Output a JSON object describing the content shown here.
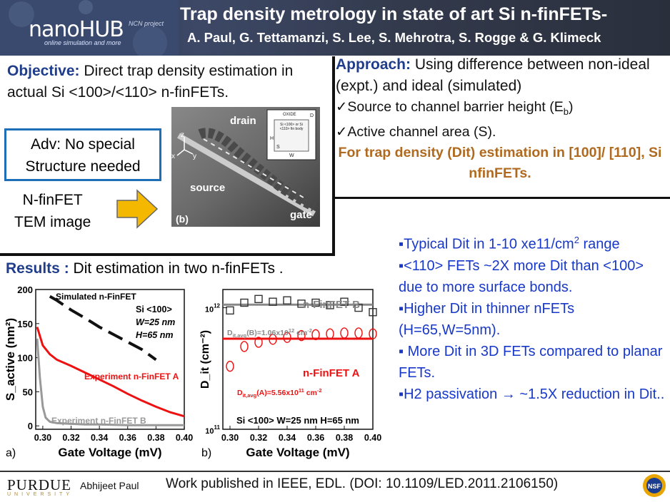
{
  "header": {
    "logo": "nanoHUB",
    "logo_sub": "online simulation and more",
    "ncn": "NCN project",
    "title": "Trap density metrology in state of art Si n-finFETs-",
    "authors": "A. Paul, G. Tettamanzi, S. Lee, S. Mehrotra, S. Rogge & G. Klimeck"
  },
  "objective": {
    "label": "Objective:",
    "text": "Direct trap density estimation in actual Si <100>/<110> n-finFETs.",
    "adv_line1": "Adv: No special",
    "adv_line2": "Structure needed",
    "nfin_line1": "N-finFET",
    "nfin_line2": "TEM image"
  },
  "tem_image": {
    "drain": "drain",
    "source": "source",
    "gate": "gate",
    "panel": "(b)",
    "inset_oxide": "OXIDE",
    "inset_body": "Si <100> or Si <110> fin body",
    "inset_h": "H",
    "inset_s": "S",
    "inset_w": "W",
    "inset_d": "D",
    "axis_z": "z",
    "axis_x": "x",
    "axis_y": "y"
  },
  "approach": {
    "label": "Approach:",
    "text": "Using difference between non-ideal (expt.) and ideal (simulated)",
    "check1_pre": "✓Source to channel barrier height  (E",
    "check1_sub": "b",
    "check1_post": ")",
    "check2": "✓Active channel area (S).",
    "note": "For trap density (Dit) estimation in [100]/ [110], Si nfinFETs."
  },
  "results": {
    "label": "Results :",
    "text": "Dit estimation in two n-finFETs ."
  },
  "chart_data": [
    {
      "type": "line",
      "panel": "a)",
      "xlabel": "Gate Voltage (mV)",
      "ylabel": "S_active (nm²)",
      "xlim": [
        0.295,
        0.4
      ],
      "ylim": [
        -5,
        200
      ],
      "x_ticks": [
        "0.30",
        "0.32",
        "0.34",
        "0.36",
        "0.38",
        "0.40"
      ],
      "y_ticks": [
        "0",
        "50",
        "100",
        "150",
        "200"
      ],
      "annotations": [
        "Si <100>",
        "W=25 nm",
        "H=65 nm"
      ],
      "series": [
        {
          "name": "Simulated n-FinFET",
          "color": "#111111",
          "style": "dashed",
          "x": [
            0.305,
            0.31,
            0.32,
            0.33,
            0.34,
            0.35,
            0.36,
            0.37,
            0.38
          ],
          "y": [
            190,
            184,
            170,
            158,
            145,
            134,
            123,
            112,
            97
          ]
        },
        {
          "name": "Experiment n-FinFET A",
          "color": "#ee1111",
          "style": "solid",
          "x": [
            0.296,
            0.3,
            0.305,
            0.31,
            0.32,
            0.33,
            0.34,
            0.35,
            0.36,
            0.37,
            0.38,
            0.39,
            0.4
          ],
          "y": [
            145,
            118,
            105,
            97,
            88,
            78,
            68,
            58,
            47,
            37,
            28,
            20,
            14
          ]
        },
        {
          "name": "Experiment n-FinFET B",
          "color": "#999999",
          "style": "solid",
          "x": [
            0.296,
            0.298,
            0.3,
            0.302,
            0.305,
            0.31,
            0.32,
            0.33,
            0.34,
            0.36,
            0.38,
            0.4
          ],
          "y": [
            128,
            70,
            28,
            12,
            6,
            4,
            3,
            2,
            2,
            1,
            1,
            1
          ]
        }
      ]
    },
    {
      "type": "scatter",
      "panel": "b)",
      "xlabel": "Gate Voltage (mV)",
      "ylabel": "D_it (cm⁻²)",
      "xlim": [
        0.295,
        0.4
      ],
      "scale": "log",
      "ylim_exp": [
        11,
        12.15
      ],
      "x_ticks": [
        "0.30",
        "0.32",
        "0.34",
        "0.36",
        "0.38",
        "0.40"
      ],
      "y_tick_base": "10",
      "y_ticks_exp": [
        "11",
        "12"
      ],
      "annotation": "Si <100> W=25 nm H=65 nm",
      "series": [
        {
          "name": "n-FinFET B",
          "color": "#888888",
          "marker": "square",
          "avg_label": "D",
          "avg_sub": "it,avg",
          "avg_text": "(B)=1.06x10",
          "avg_exp": "12",
          "avg_unit": " cm",
          "avg_unit_exp": "-2",
          "avg_value": 1060000000000.0,
          "x": [
            0.3,
            0.31,
            0.32,
            0.33,
            0.34,
            0.35,
            0.36,
            0.37,
            0.38,
            0.39,
            0.4
          ],
          "y": [
            950000000000.0,
            1100000000000.0,
            1180000000000.0,
            1120000000000.0,
            1150000000000.0,
            1080000000000.0,
            1100000000000.0,
            1050000000000.0,
            1120000000000.0,
            1000000000000.0,
            920000000000.0
          ]
        },
        {
          "name": "n-FinFET A",
          "color": "#ee1111",
          "marker": "circle",
          "avg_label": "D",
          "avg_sub": "it,avg",
          "avg_text": "(A)=5.56x10",
          "avg_exp": "11",
          "avg_unit": " cm",
          "avg_unit_exp": "-2",
          "avg_value": 556000000000.0,
          "x": [
            0.3,
            0.31,
            0.32,
            0.33,
            0.34,
            0.35,
            0.36,
            0.37,
            0.38,
            0.39,
            0.4
          ],
          "y": [
            330000000000.0,
            480000000000.0,
            520000000000.0,
            550000000000.0,
            570000000000.0,
            590000000000.0,
            600000000000.0,
            610000000000.0,
            620000000000.0,
            620000000000.0,
            610000000000.0
          ]
        }
      ]
    }
  ],
  "bullets": {
    "b1_pre": "▪Typical Dit in 1-10 xe11/cm",
    "b1_sup": "2",
    "b1_post": " range",
    "b2": "▪<110> FETs ~2X more Dit than <100> due to more surface bonds.",
    "b3": "▪Higher Dit in thinner nFETs (H=65,W=5nm).",
    "b4": "▪ More Dit  in 3D FETs compared to planar FETs.",
    "b5": "▪H2 passivation → ~1.5X reduction in Dit.."
  },
  "footer": {
    "purdue": "PURDUE",
    "university": "UNIVERSITY",
    "author": "Abhijeet Paul",
    "publication": "Work published in IEEE, EDL. (DOI: 10.1109/LED.2011.2106150)",
    "nsf": "NSF"
  },
  "colors": {
    "header_bg": "#333a4c",
    "label_blue": "#1f3d8a",
    "note_orange": "#b06a1f",
    "bullet_blue": "#1838c8",
    "red": "#ee1111",
    "gray": "#999999"
  }
}
